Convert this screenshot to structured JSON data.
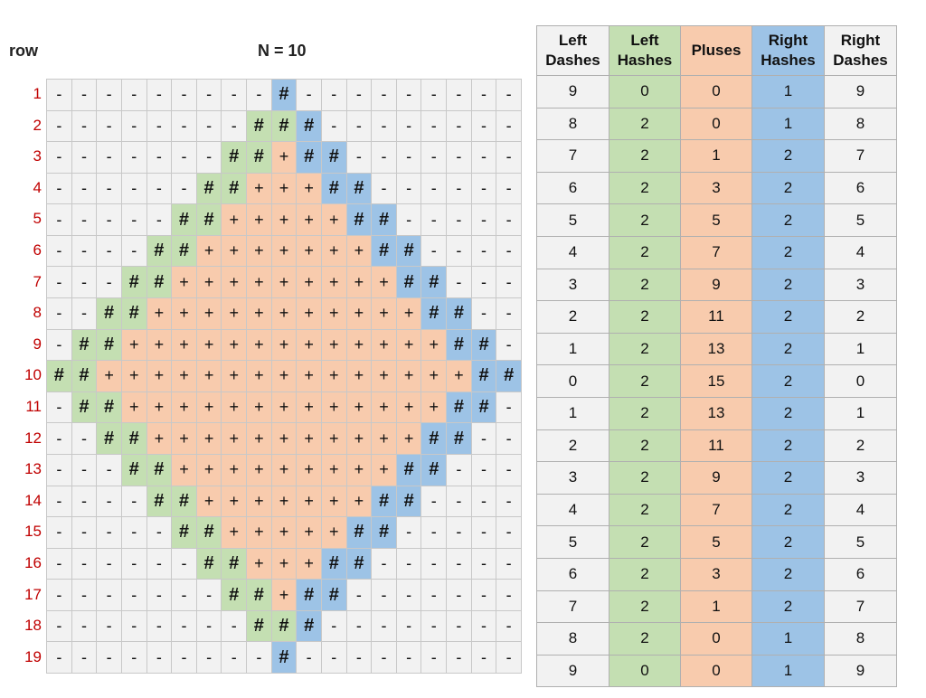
{
  "header": {
    "row_label": "row",
    "n_label": "N = 10"
  },
  "symbols": {
    "dash": "-",
    "hash": "#",
    "plus": "+"
  },
  "colors": {
    "left_hash": "#c4dfb2",
    "right_hash": "#9dc3e6",
    "plus": "#f8cbad",
    "dash": "#f2f2f2",
    "row_number": "#c00000"
  },
  "row_numbers": [
    "1",
    "2",
    "3",
    "4",
    "5",
    "6",
    "7",
    "8",
    "9",
    "10",
    "11",
    "12",
    "13",
    "14",
    "15",
    "16",
    "17",
    "18",
    "19"
  ],
  "grid_rows": [
    "---------#---------",
    "--------###--------",
    "-------##+##-------",
    "------##+++##------",
    "-----##+++++##-----",
    "----##+++++++##----",
    "---##+++++++++##---",
    "--##+++++++++++##--",
    "-##+++++++++++++##-",
    "##+++++++++++++++##",
    "-##+++++++++++++##-",
    "--##+++++++++++##--",
    "---##+++++++++##---",
    "----##+++++++##----",
    "-----##+++++##-----",
    "------##+++##------",
    "-------##+##-------",
    "--------###--------",
    "---------#---------"
  ],
  "table": {
    "headers": [
      {
        "line1": "Left",
        "line2": "Dashes"
      },
      {
        "line1": "Left",
        "line2": "Hashes"
      },
      {
        "line1": "Pluses",
        "line2": ""
      },
      {
        "line1": "Right",
        "line2": "Hashes"
      },
      {
        "line1": "Right",
        "line2": "Dashes"
      }
    ],
    "rows": [
      [
        "9",
        "0",
        "0",
        "1",
        "9"
      ],
      [
        "8",
        "2",
        "0",
        "1",
        "8"
      ],
      [
        "7",
        "2",
        "1",
        "2",
        "7"
      ],
      [
        "6",
        "2",
        "3",
        "2",
        "6"
      ],
      [
        "5",
        "2",
        "5",
        "2",
        "5"
      ],
      [
        "4",
        "2",
        "7",
        "2",
        "4"
      ],
      [
        "3",
        "2",
        "9",
        "2",
        "3"
      ],
      [
        "2",
        "2",
        "11",
        "2",
        "2"
      ],
      [
        "1",
        "2",
        "13",
        "2",
        "1"
      ],
      [
        "0",
        "2",
        "15",
        "2",
        "0"
      ],
      [
        "1",
        "2",
        "13",
        "2",
        "1"
      ],
      [
        "2",
        "2",
        "11",
        "2",
        "2"
      ],
      [
        "3",
        "2",
        "9",
        "2",
        "3"
      ],
      [
        "4",
        "2",
        "7",
        "2",
        "4"
      ],
      [
        "5",
        "2",
        "5",
        "2",
        "5"
      ],
      [
        "6",
        "2",
        "3",
        "2",
        "6"
      ],
      [
        "7",
        "2",
        "1",
        "2",
        "7"
      ],
      [
        "8",
        "2",
        "0",
        "1",
        "8"
      ],
      [
        "9",
        "0",
        "0",
        "1",
        "9"
      ]
    ]
  }
}
